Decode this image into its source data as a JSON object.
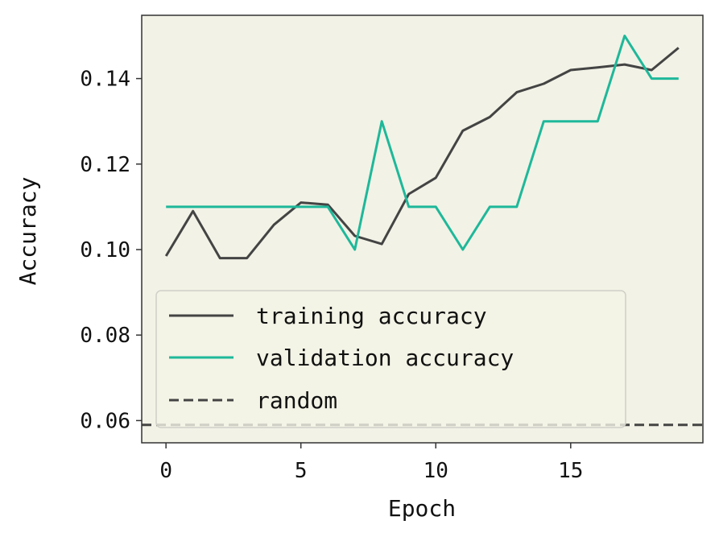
{
  "chart_data": {
    "type": "line",
    "xlabel": "Epoch",
    "ylabel": "Accuracy",
    "xlim": [
      -0.9,
      19.9
    ],
    "ylim": [
      0.0548,
      0.1548
    ],
    "x_ticks": [
      0,
      5,
      10,
      15
    ],
    "x_tick_labels": [
      "0",
      "5",
      "10",
      "15"
    ],
    "y_ticks": [
      0.06,
      0.08,
      0.1,
      0.12,
      0.14
    ],
    "y_tick_labels": [
      "0.06",
      "0.08",
      "0.10",
      "0.12",
      "0.14"
    ],
    "x": [
      0,
      1,
      2,
      3,
      4,
      5,
      6,
      7,
      8,
      9,
      10,
      11,
      12,
      13,
      14,
      15,
      16,
      17,
      18,
      19
    ],
    "grid": false,
    "background": "#f2f2e6",
    "legend_position": "lower-left",
    "series": [
      {
        "name": "training accuracy",
        "color": "#444444",
        "style": "solid",
        "values": [
          0.0985,
          0.109,
          0.098,
          0.098,
          0.1058,
          0.111,
          0.1105,
          0.1032,
          0.1013,
          0.113,
          0.1168,
          0.1278,
          0.131,
          0.1368,
          0.1388,
          0.142,
          0.1426,
          0.1433,
          0.142,
          0.1472
        ]
      },
      {
        "name": "validation accuracy",
        "color": "#1eb89a",
        "style": "solid",
        "values": [
          0.11,
          0.11,
          0.11,
          0.11,
          0.11,
          0.11,
          0.11,
          0.1,
          0.13,
          0.11,
          0.11,
          0.1,
          0.11,
          0.11,
          0.13,
          0.13,
          0.13,
          0.15,
          0.14,
          0.14
        ]
      },
      {
        "name": "random",
        "color": "#444444",
        "style": "dashed",
        "constant": 0.059
      }
    ]
  }
}
